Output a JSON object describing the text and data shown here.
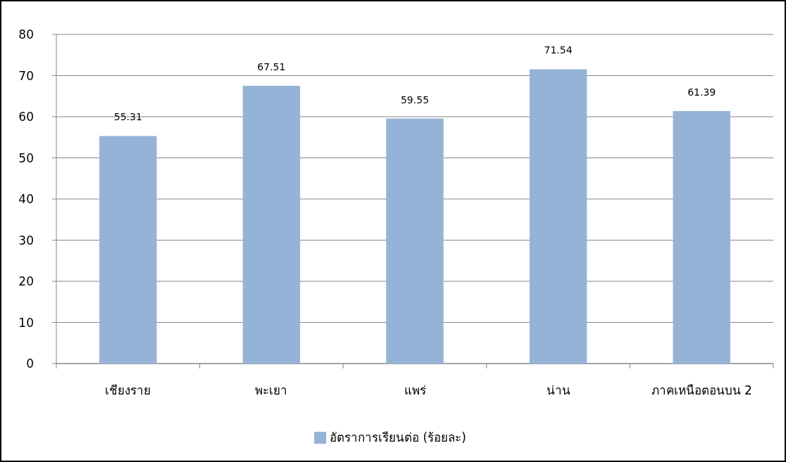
{
  "chart_data": {
    "type": "bar",
    "categories": [
      "เชียงราย",
      "พะเยา",
      "แพร่",
      "น่าน",
      "ภาคเหนือตอนบน 2"
    ],
    "series": [
      {
        "name": "อัตราการเรียนต่อ (ร้อยละ)",
        "color": "#95b3d7",
        "values": [
          55.31,
          67.51,
          59.55,
          71.54,
          61.39
        ]
      }
    ],
    "ylim": [
      0,
      80
    ],
    "yticks": [
      0,
      10,
      20,
      30,
      40,
      50,
      60,
      70,
      80
    ],
    "grid": "y",
    "data_labels": true,
    "legend": "bottom"
  }
}
